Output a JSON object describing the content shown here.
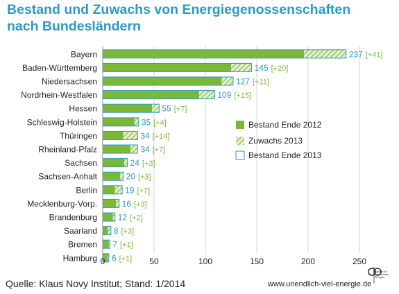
{
  "title_line1": "Bestand und Zuwachs von Energiegenossenschaften",
  "title_line2": "nach Bundesländern",
  "footer": {
    "source": "Quelle: Klaus Novy Institut; Stand: 1/2014",
    "url": "www.unendlich-viel-energie.de",
    "logo_text": "Agentur für Erneuerbare Energien"
  },
  "colors": {
    "base": "#7bb83a",
    "growth_fill": "#e3efd0",
    "growth_hatch": "#7bb83a",
    "outline": "#2b9ac4",
    "total_label": "#2b9ac4",
    "growth_label": "#7bb83a",
    "grid": "#c8c8c8",
    "title": "#2b9ac4"
  },
  "chart_data": {
    "type": "bar",
    "orientation": "horizontal",
    "stacked": true,
    "categories": [
      "Bayern",
      "Baden-Württemberg",
      "Niedersachsen",
      "Nordrhein-Westfalen",
      "Hessen",
      "Schleswig-Holstein",
      "Thüringen",
      "Rheinland-Pfalz",
      "Sachsen",
      "Sachsen-Anhalt",
      "Berlin",
      "Mecklenburg-Vorp.",
      "Brandenburg",
      "Saarland",
      "Bremen",
      "Hamburg"
    ],
    "series": [
      {
        "name": "Bestand Ende 2012",
        "values": [
          196,
          125,
          116,
          94,
          48,
          31,
          20,
          27,
          21,
          17,
          12,
          13,
          10,
          5,
          6,
          5
        ]
      },
      {
        "name": "Zuwachs 2013",
        "values": [
          41,
          20,
          11,
          15,
          7,
          4,
          14,
          7,
          3,
          3,
          7,
          3,
          2,
          3,
          1,
          1
        ]
      }
    ],
    "totals": [
      237,
      145,
      127,
      109,
      55,
      35,
      34,
      34,
      24,
      20,
      19,
      16,
      12,
      8,
      7,
      6
    ],
    "total_labels": [
      "237",
      "145",
      "127",
      "109",
      "55",
      "35",
      "34",
      "34",
      "24",
      "20",
      "19",
      "16",
      "12",
      "8",
      "7",
      "6"
    ],
    "growth_labels": [
      "[+41]",
      "[+20]",
      "[+11]",
      "[+15]",
      "[+7]",
      "[+4]",
      "[+14]",
      "[+7]",
      "[+3]",
      "[+3]",
      "[+7]",
      "[+3]",
      "[+2]",
      "[+3]",
      "[+1]",
      "[+1]"
    ],
    "legend": [
      "Bestand Ende 2012",
      "Zuwachs 2013",
      "Bestand Ende 2013"
    ],
    "legend_position": "right",
    "xlim": [
      0,
      250
    ],
    "xticks": [
      0,
      50,
      100,
      150,
      200,
      250
    ],
    "xlabel": "",
    "ylabel": "",
    "grid": true
  }
}
